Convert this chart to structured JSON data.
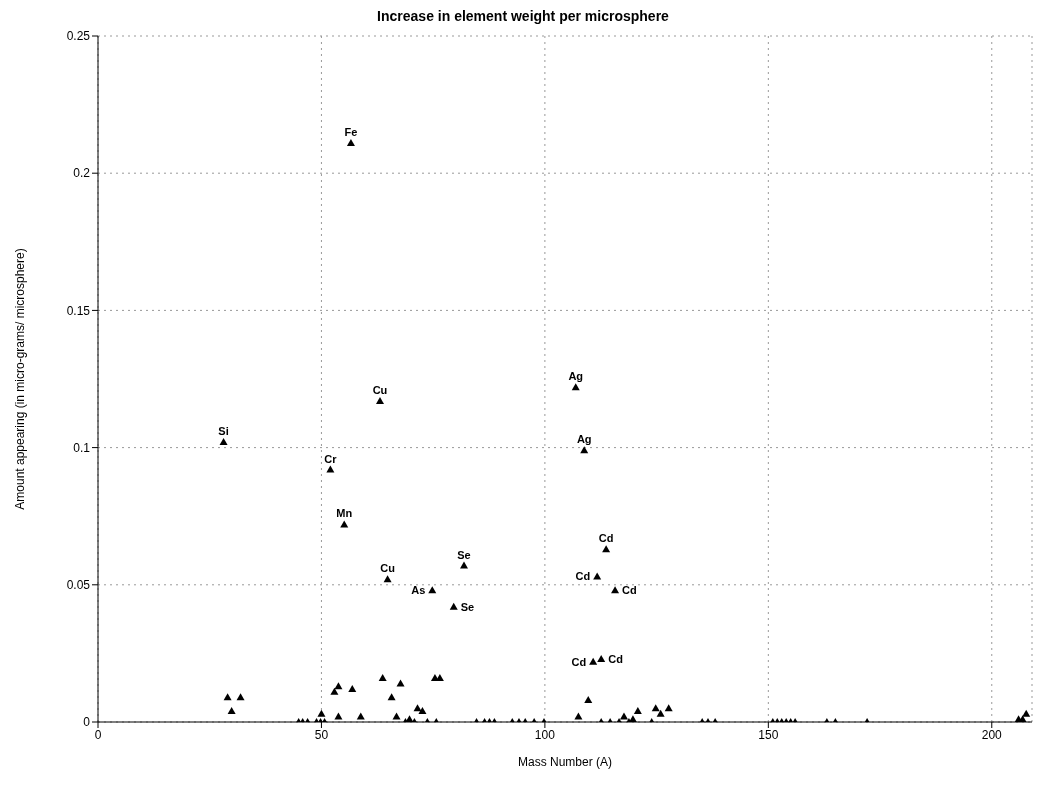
{
  "chart_data": {
    "type": "scatter",
    "title": "Increase in element weight per microsphere",
    "xlabel": "Mass Number (A)",
    "ylabel": "Amount appearing (in micro-grams/ microsphere)",
    "xlim": [
      0,
      209
    ],
    "xticks": [
      0,
      50,
      100,
      150,
      200
    ],
    "ylim": [
      0,
      0.25
    ],
    "yticks": [
      0,
      0.05,
      0.1,
      0.15,
      0.2,
      0.25
    ],
    "grid": true,
    "marker": "triangle",
    "series": [
      {
        "color": "#000000",
        "x": [
          28.1,
          56.6,
          63.1,
          52.0,
          55.1,
          64.8,
          74.8,
          81.9,
          79.6,
          106.9,
          108.8,
          113.7,
          111.7,
          115.7,
          110.8,
          112.6,
          29.0,
          31.9,
          29.9,
          44.9,
          45.8,
          46.9,
          48.9,
          49.8,
          50.7,
          50.0,
          52.9,
          53.8,
          53.8,
          56.9,
          58.8,
          63.7,
          67.7,
          65.7,
          66.8,
          68.8,
          69.7,
          70.8,
          71.5,
          72.6,
          73.7,
          75.4,
          76.5,
          75.7,
          84.7,
          86.5,
          87.6,
          88.7,
          92.7,
          94.2,
          95.6,
          97.6,
          99.8,
          107.5,
          109.7,
          112.6,
          114.6,
          116.6,
          117.7,
          118.8,
          119.7,
          120.8,
          123.9,
          124.8,
          125.9,
          127.7,
          135.2,
          136.5,
          138.1,
          151,
          152,
          153,
          154,
          155,
          156,
          163.1,
          165.0,
          172.1,
          206.0,
          206.9,
          207.7
        ],
        "values": [
          0.102,
          0.211,
          0.117,
          0.092,
          0.072,
          0.052,
          0.048,
          0.057,
          0.042,
          0.122,
          0.099,
          0.063,
          0.053,
          0.048,
          0.022,
          0.023,
          0.009,
          0.009,
          0.004,
          0,
          0,
          0,
          0,
          0,
          0,
          0.003,
          0.011,
          0.013,
          0.002,
          0.012,
          0.002,
          0.016,
          0.014,
          0.009,
          0.002,
          0,
          0.001,
          0,
          0.005,
          0.004,
          0,
          0.016,
          0.016,
          0,
          0,
          0,
          0,
          0,
          0,
          0,
          0,
          0,
          0,
          0.002,
          0.008,
          0,
          0,
          0,
          0.002,
          0,
          0.001,
          0.004,
          0,
          0.005,
          0.003,
          0.005,
          0,
          0,
          0,
          0,
          0,
          0,
          0,
          0,
          0,
          0,
          0,
          0,
          0.001,
          0.001,
          0.003
        ]
      }
    ],
    "annotations": [
      {
        "text": "Si",
        "x": 28.1,
        "y": 0.102
      },
      {
        "text": "Fe",
        "x": 56.6,
        "y": 0.211
      },
      {
        "text": "Cu",
        "x": 63.1,
        "y": 0.117
      },
      {
        "text": "Cr",
        "x": 52.0,
        "y": 0.092
      },
      {
        "text": "Mn",
        "x": 55.1,
        "y": 0.072
      },
      {
        "text": "Cu",
        "x": 64.8,
        "y": 0.052
      },
      {
        "text": "As",
        "x": 74.8,
        "y": 0.048
      },
      {
        "text": "Se",
        "x": 81.9,
        "y": 0.057
      },
      {
        "text": "Se",
        "x": 79.6,
        "y": 0.042
      },
      {
        "text": "Ag",
        "x": 106.9,
        "y": 0.122
      },
      {
        "text": "Ag",
        "x": 108.8,
        "y": 0.099
      },
      {
        "text": "Cd",
        "x": 113.7,
        "y": 0.063
      },
      {
        "text": "Cd",
        "x": 111.7,
        "y": 0.053
      },
      {
        "text": "Cd",
        "x": 115.7,
        "y": 0.048
      },
      {
        "text": "Cd",
        "x": 110.8,
        "y": 0.022
      },
      {
        "text": "Cd",
        "x": 112.6,
        "y": 0.023
      }
    ]
  }
}
